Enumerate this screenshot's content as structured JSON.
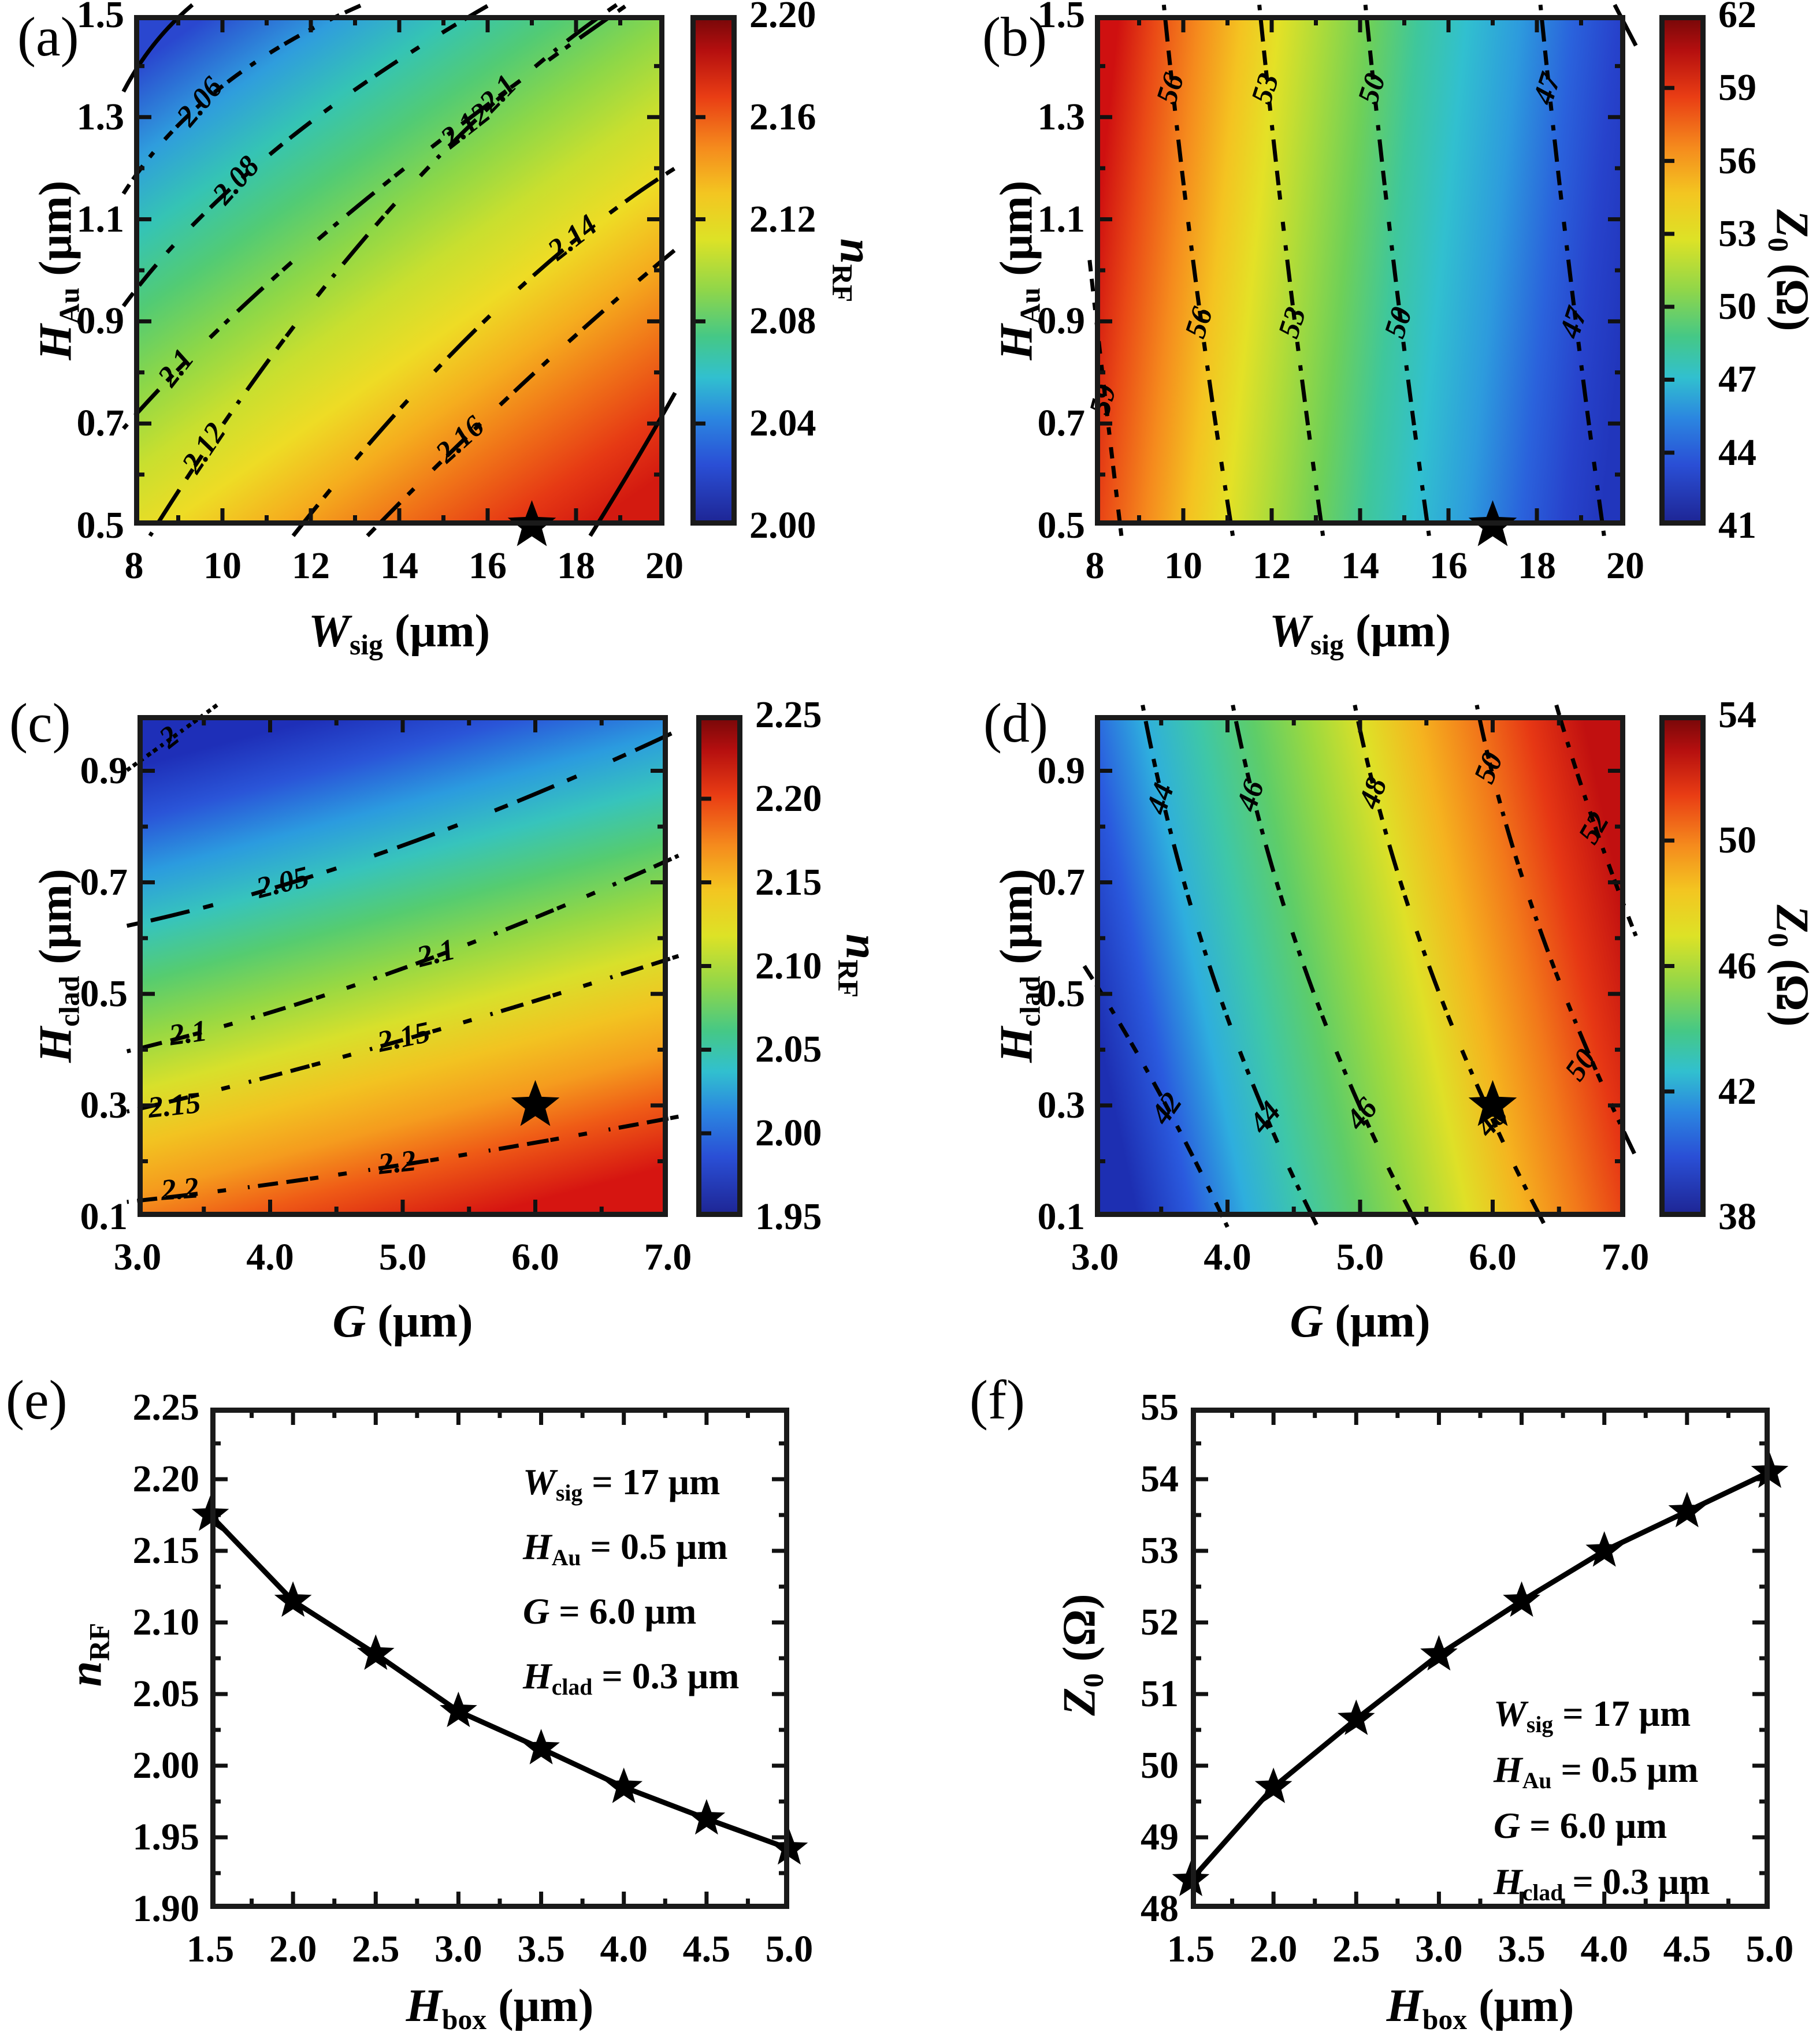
{
  "figure": {
    "panel_letters": [
      "(a)",
      "(b)",
      "(c)",
      "(d)",
      "(e)",
      "(f)"
    ],
    "contour_line_color": "#000000",
    "marker": "star",
    "colormap": "jet"
  },
  "chart_data": [
    {
      "panel": "(a)",
      "type": "contour",
      "xlabel": {
        "v": "W",
        "s": "sig",
        "u": " (μm)"
      },
      "ylabel": {
        "v": "H",
        "s": "Au",
        "u": " (μm)"
      },
      "zlabel": {
        "v": "n",
        "s": "RF",
        "u": ""
      },
      "xlim": [
        8,
        20
      ],
      "ylim": [
        0.5,
        1.5
      ],
      "x_ticks": [
        {
          "v": 8,
          "t": "8"
        },
        {
          "v": 10,
          "t": "10"
        },
        {
          "v": 12,
          "t": "12"
        },
        {
          "v": 14,
          "t": "14"
        },
        {
          "v": 16,
          "t": "16"
        },
        {
          "v": 18,
          "t": "18"
        },
        {
          "v": 20,
          "t": "20"
        }
      ],
      "y_ticks": [
        {
          "v": 0.5,
          "t": "0.5"
        },
        {
          "v": 0.7,
          "t": "0.7"
        },
        {
          "v": 0.9,
          "t": "0.9"
        },
        {
          "v": 1.1,
          "t": "1.1"
        },
        {
          "v": 1.3,
          "t": "1.3"
        },
        {
          "v": 1.5,
          "t": "1.5"
        }
      ],
      "colorbar": {
        "min": 2.0,
        "max": 2.2,
        "ticks": [
          {
            "v": 2.2,
            "t": "2.20"
          },
          {
            "v": 2.16,
            "t": "2.16"
          },
          {
            "v": 2.12,
            "t": "2.12"
          },
          {
            "v": 2.08,
            "t": "2.08"
          },
          {
            "v": 2.04,
            "t": "2.04"
          },
          {
            "v": 2.0,
            "t": "2.00"
          }
        ]
      },
      "contour_levels": [
        2.04,
        2.06,
        2.08,
        2.1,
        2.12,
        2.14,
        2.16,
        2.18
      ],
      "contour_labels": [
        {
          "t": "2.06",
          "x": 12.8,
          "y": 17.3,
          "r": -50
        },
        {
          "t": "2.08",
          "x": 19.6,
          "y": 32.7,
          "r": -48
        },
        {
          "t": "2.1",
          "x": 8.3,
          "y": 69.4,
          "r": -52
        },
        {
          "t": "2.1",
          "x": 69,
          "y": 15.7,
          "r": -46
        },
        {
          "t": "2.12",
          "x": 13.6,
          "y": 85.1,
          "r": -56
        },
        {
          "t": "2.12",
          "x": 62.8,
          "y": 22.1,
          "r": -38
        },
        {
          "t": "2.14",
          "x": 83,
          "y": 44,
          "r": -38
        },
        {
          "t": "2.16",
          "x": 61.8,
          "y": 83.5,
          "r": -42
        }
      ],
      "star": {
        "x": 17,
        "y": 0.5
      }
    },
    {
      "panel": "(b)",
      "type": "contour",
      "xlabel": {
        "v": "W",
        "s": "sig",
        "u": " (μm)"
      },
      "ylabel": {
        "v": "H",
        "s": "Au",
        "u": " (μm)"
      },
      "zlabel": {
        "v": "Z",
        "s": "0",
        "u": " (Ω)"
      },
      "xlim": [
        8,
        20
      ],
      "ylim": [
        0.5,
        1.5
      ],
      "x_ticks": [
        {
          "v": 8,
          "t": "8"
        },
        {
          "v": 10,
          "t": "10"
        },
        {
          "v": 12,
          "t": "12"
        },
        {
          "v": 14,
          "t": "14"
        },
        {
          "v": 16,
          "t": "16"
        },
        {
          "v": 18,
          "t": "18"
        },
        {
          "v": 20,
          "t": "20"
        }
      ],
      "y_ticks": [
        {
          "v": 0.5,
          "t": "0.5"
        },
        {
          "v": 0.7,
          "t": "0.7"
        },
        {
          "v": 0.9,
          "t": "0.9"
        },
        {
          "v": 1.1,
          "t": "1.1"
        },
        {
          "v": 1.3,
          "t": "1.3"
        },
        {
          "v": 1.5,
          "t": "1.5"
        }
      ],
      "colorbar": {
        "min": 41,
        "max": 62,
        "ticks": [
          {
            "v": 62,
            "t": "62"
          },
          {
            "v": 59,
            "t": "59"
          },
          {
            "v": 56,
            "t": "56"
          },
          {
            "v": 53,
            "t": "53"
          },
          {
            "v": 50,
            "t": "50"
          },
          {
            "v": 47,
            "t": "47"
          },
          {
            "v": 44,
            "t": "44"
          },
          {
            "v": 41,
            "t": "41"
          }
        ]
      },
      "contour_levels": [
        59,
        56,
        53,
        50,
        47,
        44
      ],
      "contour_labels": [
        {
          "t": "59",
          "x": 2,
          "y": 75.5,
          "r": -75
        },
        {
          "t": "56",
          "x": 14.7,
          "y": 14.6,
          "r": -72
        },
        {
          "t": "56",
          "x": 20.1,
          "y": 60.4,
          "r": -72
        },
        {
          "t": "53",
          "x": 32.6,
          "y": 14.6,
          "r": -72
        },
        {
          "t": "53",
          "x": 37.7,
          "y": 60.4,
          "r": -72
        },
        {
          "t": "50",
          "x": 52.7,
          "y": 14.6,
          "r": -72
        },
        {
          "t": "50",
          "x": 57.7,
          "y": 60.4,
          "r": -72
        },
        {
          "t": "47",
          "x": 85.7,
          "y": 14.6,
          "r": -72
        },
        {
          "t": "47",
          "x": 90.7,
          "y": 60.4,
          "r": -72
        }
      ],
      "star": {
        "x": 17,
        "y": 0.5
      }
    },
    {
      "panel": "(c)",
      "type": "contour",
      "xlabel": {
        "v": "G",
        "s": "",
        "u": " (μm)"
      },
      "ylabel": {
        "v": "H",
        "s": "clad",
        "u": " (μm)"
      },
      "zlabel": {
        "v": "n",
        "s": "RF",
        "u": ""
      },
      "xlim": [
        3,
        7
      ],
      "ylim": [
        0.1,
        1.0
      ],
      "x_ticks": [
        {
          "v": 3,
          "t": "3.0"
        },
        {
          "v": 4,
          "t": "4.0"
        },
        {
          "v": 5,
          "t": "5.0"
        },
        {
          "v": 6,
          "t": "6.0"
        },
        {
          "v": 7,
          "t": "7.0"
        }
      ],
      "y_ticks": [
        {
          "v": 0.1,
          "t": "0.1"
        },
        {
          "v": 0.3,
          "t": "0.3"
        },
        {
          "v": 0.5,
          "t": "0.5"
        },
        {
          "v": 0.7,
          "t": "0.7"
        },
        {
          "v": 0.9,
          "t": "0.9"
        }
      ],
      "colorbar": {
        "min": 1.95,
        "max": 2.25,
        "ticks": [
          {
            "v": 2.25,
            "t": "2.25"
          },
          {
            "v": 2.2,
            "t": "2.20"
          },
          {
            "v": 2.15,
            "t": "2.15"
          },
          {
            "v": 2.1,
            "t": "2.10"
          },
          {
            "v": 2.05,
            "t": "2.05"
          },
          {
            "v": 2.0,
            "t": "2.00"
          },
          {
            "v": 1.95,
            "t": "1.95"
          }
        ]
      },
      "contour_levels": [
        2.0,
        2.05,
        2.1,
        2.15,
        2.2
      ],
      "contour_labels": [
        {
          "t": "2",
          "x": 6.3,
          "y": 4.8,
          "r": -38
        },
        {
          "t": "2.05",
          "x": 27.5,
          "y": 33.9,
          "r": -14
        },
        {
          "t": "2.1",
          "x": 9.6,
          "y": 63.9,
          "r": -8
        },
        {
          "t": "2.1",
          "x": 56.4,
          "y": 48,
          "r": -14
        },
        {
          "t": "2.15",
          "x": 7,
          "y": 78.3,
          "r": -6
        },
        {
          "t": "2.15",
          "x": 50.3,
          "y": 64.7,
          "r": -12
        },
        {
          "t": "2.2",
          "x": 8,
          "y": 95,
          "r": -4
        },
        {
          "t": "2.2",
          "x": 49,
          "y": 89.7,
          "r": -6
        }
      ],
      "star": {
        "x": 6.0,
        "y": 0.3
      }
    },
    {
      "panel": "(d)",
      "type": "contour",
      "xlabel": {
        "v": "G",
        "s": "",
        "u": " (μm)"
      },
      "ylabel": {
        "v": "H",
        "s": "clad",
        "u": " (μm)"
      },
      "zlabel": {
        "v": "Z",
        "s": "0",
        "u": " (Ω)"
      },
      "xlim": [
        3,
        7
      ],
      "ylim": [
        0.1,
        1.0
      ],
      "x_ticks": [
        {
          "v": 3,
          "t": "3.0"
        },
        {
          "v": 4,
          "t": "4.0"
        },
        {
          "v": 5,
          "t": "5.0"
        },
        {
          "v": 6,
          "t": "6.0"
        },
        {
          "v": 7,
          "t": "7.0"
        }
      ],
      "y_ticks": [
        {
          "v": 0.1,
          "t": "0.1"
        },
        {
          "v": 0.3,
          "t": "0.3"
        },
        {
          "v": 0.5,
          "t": "0.5"
        },
        {
          "v": 0.7,
          "t": "0.7"
        },
        {
          "v": 0.9,
          "t": "0.9"
        }
      ],
      "colorbar": {
        "min": 38,
        "max": 54,
        "ticks": [
          {
            "v": 54,
            "t": "54"
          },
          {
            "v": 50,
            "t": "50"
          },
          {
            "v": 46,
            "t": "46"
          },
          {
            "v": 42,
            "t": "42"
          },
          {
            "v": 38,
            "t": "38"
          }
        ]
      },
      "contour_levels": [
        42,
        44,
        46,
        48,
        50,
        52
      ],
      "contour_labels": [
        {
          "t": "42",
          "x": 13.9,
          "y": 78.7,
          "r": -55
        },
        {
          "t": "44",
          "x": 12.8,
          "y": 16.8,
          "r": -72
        },
        {
          "t": "44",
          "x": 32.5,
          "y": 80.5,
          "r": -50
        },
        {
          "t": "46",
          "x": 29.8,
          "y": 16.2,
          "r": -72
        },
        {
          "t": "46",
          "x": 50.7,
          "y": 79.8,
          "r": -50
        },
        {
          "t": "48",
          "x": 52.9,
          "y": 15.7,
          "r": -70
        },
        {
          "t": "48",
          "x": 75.2,
          "y": 81.2,
          "r": -48
        },
        {
          "t": "50",
          "x": 74.7,
          "y": 10.7,
          "r": -68
        },
        {
          "t": "50",
          "x": 92,
          "y": 70,
          "r": -55
        },
        {
          "t": "52",
          "x": 94.5,
          "y": 22.8,
          "r": -60
        }
      ],
      "star": {
        "x": 6.0,
        "y": 0.3
      }
    },
    {
      "panel": "(e)",
      "type": "line",
      "xlabel": {
        "v": "H",
        "s": "box",
        "u": " (μm)"
      },
      "ylabel": {
        "v": "n",
        "s": "RF",
        "u": ""
      },
      "xlim": [
        1.5,
        5.0
      ],
      "ylim": [
        1.9,
        2.25
      ],
      "x_ticks": [
        {
          "v": 1.5,
          "t": "1.5"
        },
        {
          "v": 2.0,
          "t": "2.0"
        },
        {
          "v": 2.5,
          "t": "2.5"
        },
        {
          "v": 3.0,
          "t": "3.0"
        },
        {
          "v": 3.5,
          "t": "3.5"
        },
        {
          "v": 4.0,
          "t": "4.0"
        },
        {
          "v": 4.5,
          "t": "4.5"
        },
        {
          "v": 5.0,
          "t": "5.0"
        }
      ],
      "y_ticks": [
        {
          "v": 2.25,
          "t": "2.25"
        },
        {
          "v": 2.2,
          "t": "2.20"
        },
        {
          "v": 2.15,
          "t": "2.15"
        },
        {
          "v": 2.1,
          "t": "2.10"
        },
        {
          "v": 2.05,
          "t": "2.05"
        },
        {
          "v": 2.0,
          "t": "2.00"
        },
        {
          "v": 1.95,
          "t": "1.95"
        },
        {
          "v": 1.9,
          "t": "1.90"
        }
      ],
      "series": {
        "x": [
          1.5,
          2.0,
          2.5,
          3.0,
          3.5,
          4.0,
          4.5,
          5.0
        ],
        "y": [
          2.175,
          2.115,
          2.078,
          2.038,
          2.012,
          1.985,
          1.963,
          1.942
        ],
        "marker": "star"
      },
      "annotation": [
        {
          "v": "W",
          "s": "sig",
          "t": " = 17 μm"
        },
        {
          "v": "H",
          "s": "Au",
          "t": " = 0.5 μm"
        },
        {
          "v": "G",
          "s": "",
          "t": " = 6.0 μm"
        },
        {
          "v": "H",
          "s": "clad",
          "t": " = 0.3 μm"
        }
      ]
    },
    {
      "panel": "(f)",
      "type": "line",
      "xlabel": {
        "v": "H",
        "s": "box",
        "u": " (μm)"
      },
      "ylabel": {
        "v": "Z",
        "s": "0",
        "u": " (Ω)"
      },
      "xlim": [
        1.5,
        5.0
      ],
      "ylim": [
        48,
        55
      ],
      "x_ticks": [
        {
          "v": 1.5,
          "t": "1.5"
        },
        {
          "v": 2.0,
          "t": "2.0"
        },
        {
          "v": 2.5,
          "t": "2.5"
        },
        {
          "v": 3.0,
          "t": "3.0"
        },
        {
          "v": 3.5,
          "t": "3.5"
        },
        {
          "v": 4.0,
          "t": "4.0"
        },
        {
          "v": 4.5,
          "t": "4.5"
        },
        {
          "v": 5.0,
          "t": "5.0"
        }
      ],
      "y_ticks": [
        {
          "v": 55,
          "t": "55"
        },
        {
          "v": 54,
          "t": "54"
        },
        {
          "v": 53,
          "t": "53"
        },
        {
          "v": 52,
          "t": "52"
        },
        {
          "v": 51,
          "t": "51"
        },
        {
          "v": 50,
          "t": "50"
        },
        {
          "v": 49,
          "t": "49"
        },
        {
          "v": 48,
          "t": "48"
        }
      ],
      "series": {
        "x": [
          1.5,
          2.0,
          2.5,
          3.0,
          3.5,
          4.0,
          4.5,
          5.0
        ],
        "y": [
          48.4,
          49.7,
          50.65,
          51.55,
          52.3,
          53.0,
          53.55,
          54.1
        ],
        "marker": "star"
      },
      "annotation": [
        {
          "v": "W",
          "s": "sig",
          "t": " = 17 μm"
        },
        {
          "v": "H",
          "s": "Au",
          "t": " = 0.5 μm"
        },
        {
          "v": "G",
          "s": "",
          "t": " = 6.0 μm"
        },
        {
          "v": "H",
          "s": "clad",
          "t": " = 0.3 μm"
        }
      ]
    }
  ]
}
